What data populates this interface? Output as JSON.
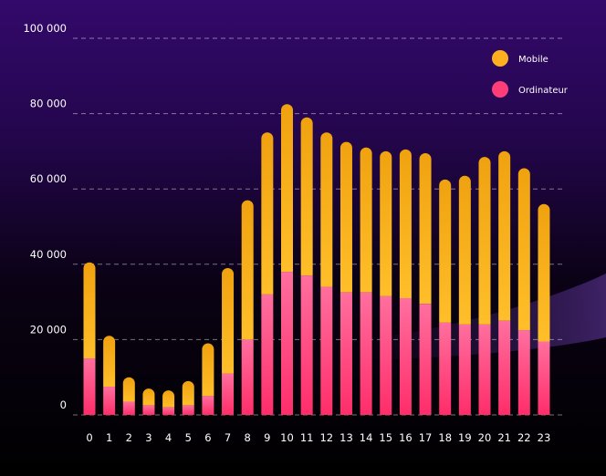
{
  "chart_data": {
    "type": "bar",
    "stacked": true,
    "title": "",
    "xlabel": "",
    "ylabel": "",
    "categories": [
      "0",
      "1",
      "2",
      "3",
      "4",
      "5",
      "6",
      "7",
      "8",
      "9",
      "10",
      "11",
      "12",
      "13",
      "14",
      "15",
      "16",
      "17",
      "18",
      "19",
      "20",
      "21",
      "22",
      "23"
    ],
    "series": [
      {
        "name": "Ordinateur",
        "color": "#ff3d78",
        "values": [
          15000,
          7500,
          3500,
          2500,
          2000,
          2500,
          5000,
          11000,
          20000,
          32000,
          38000,
          37000,
          34000,
          32500,
          32500,
          31500,
          31000,
          29500,
          24500,
          24000,
          24000,
          25000,
          22500,
          19500
        ]
      },
      {
        "name": "Mobile",
        "color": "#ffb01f",
        "values": [
          25500,
          13500,
          6500,
          4500,
          4500,
          6500,
          14000,
          28000,
          37000,
          43000,
          44500,
          42000,
          41000,
          40000,
          38500,
          38500,
          39500,
          40000,
          38000,
          39500,
          44500,
          45000,
          43000,
          36500
        ]
      }
    ],
    "ylim": [
      0,
      100000
    ],
    "y_ticks": [
      0,
      20000,
      40000,
      60000,
      80000,
      100000
    ],
    "y_tick_labels": [
      "0",
      "20 000",
      "40 000",
      "60 000",
      "80 000",
      "100 000"
    ],
    "grid": true,
    "legend_position": "top-right",
    "background": {
      "top": "#33096b",
      "bottom": "#000000",
      "swoosh": "#3a1f63"
    }
  }
}
